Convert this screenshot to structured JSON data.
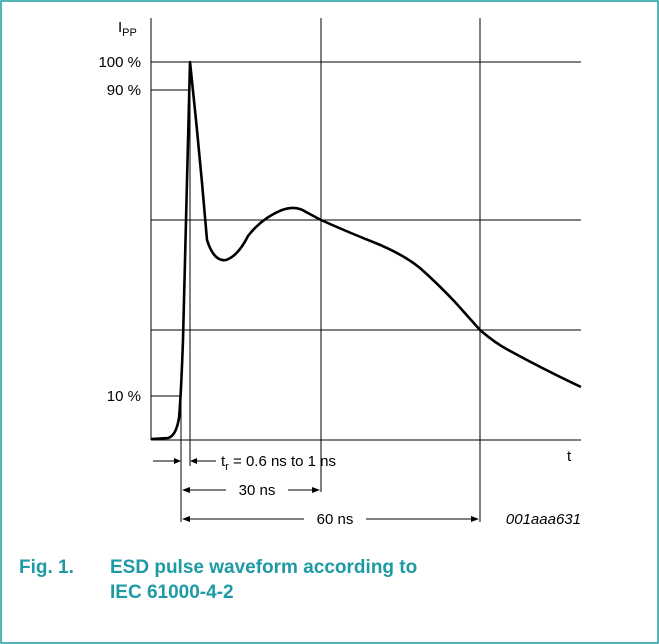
{
  "axis": {
    "y_label_main": "I",
    "y_label_sub": "PP",
    "x_label": "t"
  },
  "levels": {
    "l100": "100 %",
    "l90": "90 %",
    "l10": "10 %"
  },
  "annotations": {
    "tr_main": "t",
    "tr_sub": "r",
    "tr_text": " = 0.6 ns to 1 ns",
    "t30": "30 ns",
    "t60": "60 ns",
    "code": "001aaa631"
  },
  "caption": {
    "number": "Fig. 1.",
    "line1": "ESD pulse waveform according to",
    "line2": "IEC 61000-4-2"
  },
  "colors": {
    "accent": "#1e9aa4",
    "ink": "#000000"
  }
}
